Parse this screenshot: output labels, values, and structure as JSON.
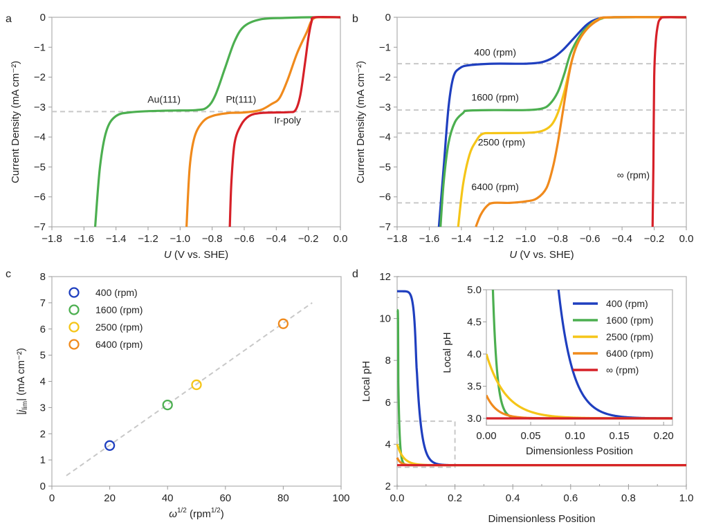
{
  "colors": {
    "blue": "#1f3fbf",
    "green": "#4caf50",
    "yellow": "#f5c518",
    "orange": "#f08a1c",
    "red": "#d62028",
    "reference": "#c8c8c8"
  },
  "chart_data": [
    {
      "panel": "a",
      "type": "line",
      "xlabel_italic": "U",
      "xlabel_rest": " (V vs. SHE)",
      "ylabel": "Current Density (mA cm⁻²)",
      "xlim": [
        -1.8,
        0.0
      ],
      "ylim": [
        -7,
        0
      ],
      "xticks": [
        -1.8,
        -1.6,
        -1.4,
        -1.2,
        -1.0,
        -0.8,
        -0.6,
        -0.4,
        -0.2,
        0.0
      ],
      "xtick_labels": [
        "−1.8",
        "−1.6",
        "−1.4",
        "−1.2",
        "−1.0",
        "−0.8",
        "−0.6",
        "−0.4",
        "−0.2",
        "0.0"
      ],
      "yticks": [
        0,
        -1,
        -2,
        -3,
        -4,
        -5,
        -6,
        -7
      ],
      "ytick_labels": [
        "0",
        "−1",
        "−2",
        "−3",
        "−4",
        "−5",
        "−6",
        "−7"
      ],
      "reference_lines": [
        -3.15
      ],
      "series": [
        {
          "name": "Au(111)",
          "color": "green",
          "plateau": -3.1,
          "first_wave_center": -0.72,
          "second_wave_onset": -1.35,
          "curve_points": [
            [
              -1.53,
              -7.0
            ],
            [
              -1.5,
              -5.0
            ],
            [
              -1.46,
              -3.8
            ],
            [
              -1.4,
              -3.3
            ],
            [
              -1.3,
              -3.17
            ],
            [
              -1.1,
              -3.12
            ],
            [
              -0.9,
              -3.1
            ],
            [
              -0.83,
              -3.0
            ],
            [
              -0.78,
              -2.6
            ],
            [
              -0.72,
              -1.7
            ],
            [
              -0.66,
              -0.8
            ],
            [
              -0.6,
              -0.3
            ],
            [
              -0.5,
              -0.07
            ],
            [
              -0.35,
              -0.02
            ],
            [
              -0.2,
              0.0
            ],
            [
              0.0,
              0.0
            ]
          ]
        },
        {
          "name": "Pt(111)",
          "color": "orange",
          "plateau": -3.17,
          "curve_points": [
            [
              -0.96,
              -7.0
            ],
            [
              -0.94,
              -5.0
            ],
            [
              -0.91,
              -4.0
            ],
            [
              -0.86,
              -3.5
            ],
            [
              -0.8,
              -3.3
            ],
            [
              -0.7,
              -3.2
            ],
            [
              -0.6,
              -3.18
            ],
            [
              -0.5,
              -3.1
            ],
            [
              -0.43,
              -2.9
            ],
            [
              -0.38,
              -2.7
            ],
            [
              -0.33,
              -2.1
            ],
            [
              -0.27,
              -1.2
            ],
            [
              -0.21,
              -0.5
            ],
            [
              -0.17,
              -0.05
            ],
            [
              -0.1,
              0.0
            ],
            [
              0.0,
              0.0
            ]
          ]
        },
        {
          "name": "Ir-poly",
          "color": "red",
          "plateau": -3.18,
          "curve_points": [
            [
              -0.69,
              -7.0
            ],
            [
              -0.68,
              -5.5
            ],
            [
              -0.66,
              -4.2
            ],
            [
              -0.62,
              -3.6
            ],
            [
              -0.57,
              -3.3
            ],
            [
              -0.5,
              -3.2
            ],
            [
              -0.4,
              -3.18
            ],
            [
              -0.32,
              -3.17
            ],
            [
              -0.28,
              -3.1
            ],
            [
              -0.25,
              -2.6
            ],
            [
              -0.22,
              -1.5
            ],
            [
              -0.2,
              -0.7
            ],
            [
              -0.18,
              -0.15
            ],
            [
              -0.16,
              0.0
            ],
            [
              0.0,
              0.0
            ]
          ]
        }
      ],
      "annotations": [
        {
          "text": "Au(111)",
          "x": -1.1,
          "y": -2.85
        },
        {
          "text": "Pt(111)",
          "x": -0.62,
          "y": -2.85
        },
        {
          "text": "Ir-poly",
          "x": -0.33,
          "y": -3.55
        }
      ]
    },
    {
      "panel": "b",
      "type": "line",
      "xlabel_italic": "U",
      "xlabel_rest": " (V vs. SHE)",
      "ylabel": "Current Density (mA cm⁻²)",
      "xlim": [
        -1.8,
        0.0
      ],
      "ylim": [
        -7,
        0
      ],
      "xticks": [
        -1.8,
        -1.6,
        -1.4,
        -1.2,
        -1.0,
        -0.8,
        -0.6,
        -0.4,
        -0.2,
        0.0
      ],
      "xtick_labels": [
        "−1.8",
        "−1.6",
        "−1.4",
        "−1.2",
        "−1.0",
        "−0.8",
        "−0.6",
        "−0.4",
        "−0.2",
        "0.0"
      ],
      "yticks": [
        0,
        -1,
        -2,
        -3,
        -4,
        -5,
        -6,
        -7
      ],
      "ytick_labels": [
        "0",
        "−1",
        "−2",
        "−3",
        "−4",
        "−5",
        "−6",
        "−7"
      ],
      "reference_lines": [
        -1.55,
        -3.1,
        -3.87,
        -6.2
      ],
      "series": [
        {
          "name": "400 (rpm)",
          "color": "blue",
          "curve_points": [
            [
              -1.54,
              -7.0
            ],
            [
              -1.51,
              -5.0
            ],
            [
              -1.48,
              -3.0
            ],
            [
              -1.45,
              -2.0
            ],
            [
              -1.41,
              -1.7
            ],
            [
              -1.35,
              -1.6
            ],
            [
              -1.2,
              -1.55
            ],
            [
              -1.0,
              -1.55
            ],
            [
              -0.9,
              -1.5
            ],
            [
              -0.83,
              -1.35
            ],
            [
              -0.77,
              -1.1
            ],
            [
              -0.7,
              -0.7
            ],
            [
              -0.62,
              -0.25
            ],
            [
              -0.55,
              -0.05
            ],
            [
              -0.45,
              0.0
            ],
            [
              0.0,
              0.0
            ]
          ]
        },
        {
          "name": "1600 (rpm)",
          "color": "green",
          "curve_points": [
            [
              -1.53,
              -7.0
            ],
            [
              -1.51,
              -5.5
            ],
            [
              -1.48,
              -4.2
            ],
            [
              -1.44,
              -3.5
            ],
            [
              -1.39,
              -3.2
            ],
            [
              -1.36,
              -3.12
            ],
            [
              -1.2,
              -3.1
            ],
            [
              -1.0,
              -3.1
            ],
            [
              -0.9,
              -3.05
            ],
            [
              -0.85,
              -2.9
            ],
            [
              -0.8,
              -2.5
            ],
            [
              -0.76,
              -1.9
            ],
            [
              -0.72,
              -1.2
            ],
            [
              -0.66,
              -0.6
            ],
            [
              -0.6,
              -0.25
            ],
            [
              -0.53,
              -0.05
            ],
            [
              -0.45,
              0.0
            ],
            [
              0.0,
              0.0
            ]
          ]
        },
        {
          "name": "2500 (rpm)",
          "color": "yellow",
          "curve_points": [
            [
              -1.42,
              -7.0
            ],
            [
              -1.39,
              -5.6
            ],
            [
              -1.35,
              -4.6
            ],
            [
              -1.31,
              -4.15
            ],
            [
              -1.27,
              -3.9
            ],
            [
              -1.2,
              -3.87
            ],
            [
              -1.0,
              -3.86
            ],
            [
              -0.9,
              -3.8
            ],
            [
              -0.84,
              -3.6
            ],
            [
              -0.8,
              -3.2
            ],
            [
              -0.76,
              -2.5
            ],
            [
              -0.72,
              -1.6
            ],
            [
              -0.68,
              -0.9
            ],
            [
              -0.62,
              -0.4
            ],
            [
              -0.55,
              -0.08
            ],
            [
              -0.45,
              0.0
            ],
            [
              0.0,
              0.0
            ]
          ]
        },
        {
          "name": "6400 (rpm)",
          "color": "orange",
          "curve_points": [
            [
              -1.31,
              -7.0
            ],
            [
              -1.28,
              -6.6
            ],
            [
              -1.24,
              -6.3
            ],
            [
              -1.2,
              -6.2
            ],
            [
              -1.1,
              -6.2
            ],
            [
              -1.0,
              -6.15
            ],
            [
              -0.93,
              -6.05
            ],
            [
              -0.87,
              -5.7
            ],
            [
              -0.83,
              -5.0
            ],
            [
              -0.8,
              -4.2
            ],
            [
              -0.77,
              -3.2
            ],
            [
              -0.74,
              -2.2
            ],
            [
              -0.71,
              -1.4
            ],
            [
              -0.67,
              -0.8
            ],
            [
              -0.62,
              -0.4
            ],
            [
              -0.55,
              -0.1
            ],
            [
              -0.48,
              0.0
            ],
            [
              0.0,
              0.0
            ]
          ]
        },
        {
          "name": "∞ (rpm)",
          "color": "red",
          "curve_points": [
            [
              -0.21,
              -7.0
            ],
            [
              -0.205,
              -5.0
            ],
            [
              -0.2,
              -2.0
            ],
            [
              -0.19,
              -0.8
            ],
            [
              -0.175,
              -0.2
            ],
            [
              -0.16,
              -0.05
            ],
            [
              -0.14,
              0.0
            ],
            [
              0.0,
              0.0
            ]
          ]
        }
      ],
      "annotations": [
        {
          "text": "400 (rpm)",
          "x": -1.19,
          "y": -1.28
        },
        {
          "text": "1600 (rpm)",
          "x": -1.19,
          "y": -2.78
        },
        {
          "text": "2500 (rpm)",
          "x": -1.15,
          "y": -4.28
        },
        {
          "text": "6400 (rpm)",
          "x": -1.19,
          "y": -5.78
        },
        {
          "text": "∞ (rpm)",
          "x": -0.33,
          "y": -5.38
        }
      ]
    },
    {
      "panel": "c",
      "type": "scatter",
      "xlabel_omega": "ω",
      "xlabel_sup": "1/2",
      "xlabel_rest": " (rpm",
      "xlabel_unit_sup": "1/2",
      "xlabel_close": ")",
      "ylabel_pre": "|",
      "ylabel_j": "j",
      "ylabel_sub": "lim",
      "ylabel_rest": "| (mA cm⁻²)",
      "xlim": [
        0,
        100
      ],
      "ylim": [
        0,
        8
      ],
      "xticks": [
        0,
        20,
        40,
        60,
        80,
        100
      ],
      "xtick_labels": [
        "0",
        "20",
        "40",
        "60",
        "80",
        "100"
      ],
      "yticks": [
        0,
        1,
        2,
        3,
        4,
        5,
        6,
        7,
        8
      ],
      "ytick_labels": [
        "0",
        "1",
        "2",
        "3",
        "4",
        "5",
        "6",
        "7",
        "8"
      ],
      "points": [
        {
          "label": "400 (rpm)",
          "x": 20,
          "y": 1.55,
          "color": "blue"
        },
        {
          "label": "1600 (rpm)",
          "x": 40,
          "y": 3.1,
          "color": "green"
        },
        {
          "label": "2500 (rpm)",
          "x": 50,
          "y": 3.87,
          "color": "yellow"
        },
        {
          "label": "6400 (rpm)",
          "x": 80,
          "y": 6.2,
          "color": "orange"
        }
      ],
      "fit_line": {
        "x": [
          5,
          90
        ],
        "y": [
          0.4,
          7.0
        ]
      },
      "legend_position": "top-left"
    },
    {
      "panel": "d",
      "type": "line",
      "xlabel": "Dimensionless Position",
      "ylabel": "Local pH",
      "xlim": [
        0,
        1.0
      ],
      "ylim": [
        2,
        12
      ],
      "xticks": [
        0.0,
        0.2,
        0.4,
        0.6,
        0.8,
        1.0
      ],
      "xtick_labels": [
        "0.0",
        "0.2",
        "0.4",
        "0.6",
        "0.8",
        "1.0"
      ],
      "yticks": [
        2,
        4,
        6,
        8,
        10,
        12
      ],
      "ytick_labels": [
        "2",
        "4",
        "6",
        "8",
        "10",
        "12"
      ],
      "zoom_box": {
        "x": [
          0,
          0.2
        ],
        "y": [
          2.9,
          5.1
        ]
      },
      "series": [
        {
          "name": "400 (rpm)",
          "color": "blue",
          "surface_pH": 11.3,
          "front": 0.068,
          "bulk_pH": 3.0
        },
        {
          "name": "1600 (rpm)",
          "color": "green",
          "surface_pH": 10.4,
          "front": 0.004,
          "bulk_pH": 3.0
        },
        {
          "name": "2500 (rpm)",
          "color": "yellow",
          "surface_pH": 4.0,
          "decay": 0.022,
          "bulk_pH": 3.0
        },
        {
          "name": "6400 (rpm)",
          "color": "orange",
          "surface_pH": 3.36,
          "decay": 0.012,
          "bulk_pH": 3.0
        },
        {
          "name": "∞ (rpm)",
          "color": "red",
          "surface_pH": 3.0,
          "bulk_pH": 3.0
        }
      ],
      "inset": {
        "xlabel": "Dimensionless Position",
        "ylabel": "Local pH",
        "xlim": [
          0,
          0.21
        ],
        "ylim": [
          2.95,
          5.0
        ],
        "xticks": [
          0.0,
          0.05,
          0.1,
          0.15,
          0.2
        ],
        "xtick_labels": [
          "0.00",
          "0.05",
          "0.10",
          "0.15",
          "0.20"
        ],
        "yticks": [
          3.0,
          3.5,
          4.0,
          4.5,
          5.0
        ],
        "ytick_labels": [
          "3.0",
          "3.5",
          "4.0",
          "4.5",
          "5.0"
        ],
        "legend_position": "top-right",
        "legend": [
          "400 (rpm)",
          "1600 (rpm)",
          "2500 (rpm)",
          "6400 (rpm)",
          "∞ (rpm)"
        ]
      }
    }
  ],
  "panel_labels": [
    "a",
    "b",
    "c",
    "d"
  ]
}
